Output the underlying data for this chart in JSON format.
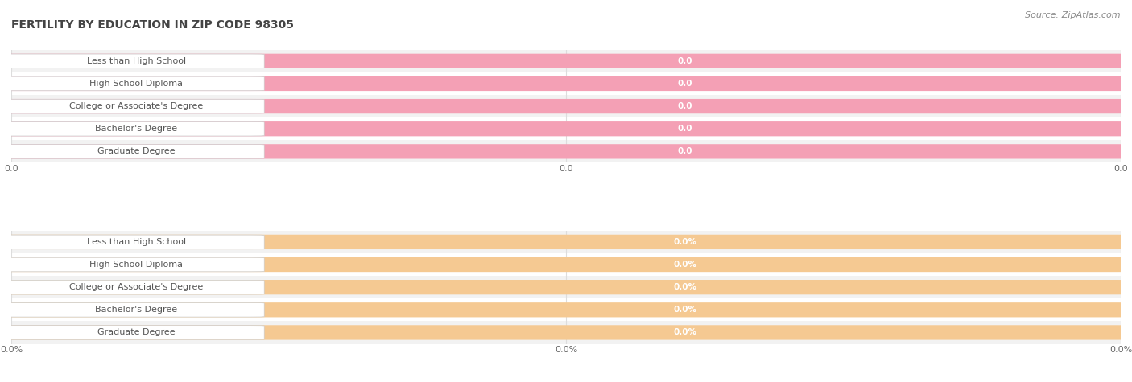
{
  "title": "FERTILITY BY EDUCATION IN ZIP CODE 98305",
  "source": "Source: ZipAtlas.com",
  "categories": [
    "Less than High School",
    "High School Diploma",
    "College or Associate's Degree",
    "Bachelor's Degree",
    "Graduate Degree"
  ],
  "top_values": [
    0.0,
    0.0,
    0.0,
    0.0,
    0.0
  ],
  "bottom_values": [
    0.0,
    0.0,
    0.0,
    0.0,
    0.0
  ],
  "top_bar_color": "#f4a0b5",
  "bottom_bar_color": "#f5c992",
  "top_value_suffix": "",
  "bottom_value_suffix": "%",
  "top_xtick_labels": [
    "0.0",
    "0.0",
    "0.0"
  ],
  "bottom_xtick_labels": [
    "0.0%",
    "0.0%",
    "0.0%"
  ],
  "title_fontsize": 10,
  "source_fontsize": 8,
  "label_fontsize": 8,
  "value_fontsize": 7.5,
  "tick_fontsize": 8,
  "background_color": "#ffffff",
  "row_bg_odd": "#f2f2f2",
  "row_bg_even": "#ffffff",
  "label_text_color": "#555555",
  "value_text_color": "#ffffff",
  "title_color": "#444444",
  "source_color": "#888888",
  "grid_color": "#dddddd"
}
